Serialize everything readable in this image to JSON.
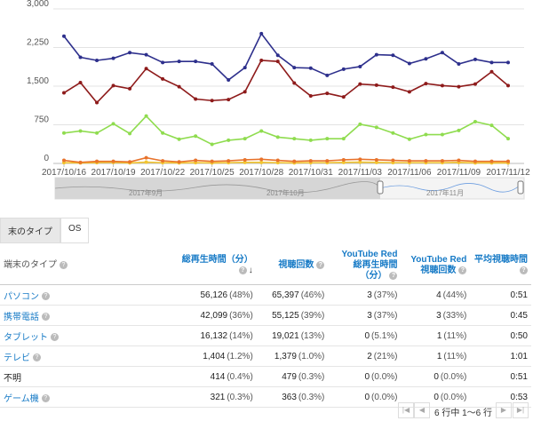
{
  "chart_data": {
    "type": "line",
    "x": [
      "2017/10/16",
      null,
      null,
      "2017/10/19",
      null,
      null,
      "2017/10/22",
      null,
      null,
      "2017/10/25",
      null,
      null,
      "2017/10/28",
      null,
      null,
      "2017/10/31",
      null,
      null,
      "2017/11/03",
      null,
      null,
      "2017/11/06",
      null,
      null,
      "2017/11/09",
      null,
      null,
      "2017/11/12"
    ],
    "series": [
      {
        "color": "#2d2f8c",
        "values": [
          2470,
          2060,
          2000,
          2040,
          2150,
          2110,
          1960,
          1980,
          1980,
          1930,
          1620,
          1860,
          2520,
          2100,
          1860,
          1850,
          1710,
          1830,
          1880,
          2110,
          2100,
          1940,
          2030,
          2150,
          1930,
          2020,
          1960,
          1960
        ]
      },
      {
        "color": "#8e1b1b",
        "values": [
          1370,
          1570,
          1180,
          1510,
          1450,
          1840,
          1640,
          1490,
          1250,
          1220,
          1240,
          1390,
          2000,
          1980,
          1560,
          1310,
          1360,
          1290,
          1540,
          1520,
          1480,
          1390,
          1550,
          1510,
          1490,
          1540,
          1780,
          1510
        ]
      },
      {
        "color": "#8fdc4f",
        "values": [
          590,
          630,
          590,
          770,
          580,
          920,
          590,
          470,
          530,
          370,
          450,
          480,
          630,
          510,
          480,
          450,
          480,
          480,
          760,
          700,
          590,
          470,
          560,
          560,
          640,
          810,
          740,
          480
        ]
      },
      {
        "color": "#e8732c",
        "values": [
          60,
          20,
          40,
          40,
          30,
          110,
          50,
          30,
          60,
          40,
          50,
          70,
          80,
          60,
          40,
          50,
          50,
          70,
          80,
          70,
          60,
          50,
          50,
          50,
          60,
          40,
          40,
          40
        ]
      },
      {
        "color": "#f2c530",
        "values": [
          15,
          10,
          15,
          20,
          10,
          25,
          15,
          10,
          15,
          10,
          15,
          20,
          20,
          15,
          10,
          15,
          15,
          20,
          25,
          20,
          15,
          15,
          15,
          15,
          20,
          10,
          10,
          10
        ]
      }
    ],
    "ylim": [
      0,
      3000
    ],
    "yticks": [
      0,
      750,
      {
        "value": 1500,
        "label": "1,500"
      },
      {
        "value": 2250,
        "label": "2,250"
      },
      {
        "value": 3000,
        "label": "3,000"
      }
    ],
    "grid": true
  },
  "navigator": {
    "labels": [
      "2017年9月",
      "2017年10月",
      "2017年11月"
    ]
  },
  "tabs": [
    "末のタイプ",
    "OS"
  ],
  "table": {
    "headers": [
      {
        "text": "端末のタイプ",
        "link": false
      },
      {
        "text": "総再生時間（分）",
        "link": true
      },
      {
        "text": "視聴回数",
        "link": true
      },
      {
        "text": "YouTube Red 総再生時間（分）",
        "link": true
      },
      {
        "text": "YouTube Red 視聴回数",
        "link": true
      },
      {
        "text": "平均視聴時間",
        "link": true
      }
    ],
    "rows": [
      {
        "label": "パソコン",
        "link": true,
        "cells": [
          [
            "56,126",
            "(48%)"
          ],
          [
            "65,397",
            "(46%)"
          ],
          [
            "3",
            "(37%)"
          ],
          [
            "4",
            "(44%)"
          ],
          [
            "0:51"
          ]
        ]
      },
      {
        "label": "携帯電話",
        "link": true,
        "cells": [
          [
            "42,099",
            "(36%)"
          ],
          [
            "55,125",
            "(39%)"
          ],
          [
            "3",
            "(37%)"
          ],
          [
            "3",
            "(33%)"
          ],
          [
            "0:45"
          ]
        ]
      },
      {
        "label": "タブレット",
        "link": true,
        "cells": [
          [
            "16,132",
            "(14%)"
          ],
          [
            "19,021",
            "(13%)"
          ],
          [
            "0",
            "(5.1%)"
          ],
          [
            "1",
            "(11%)"
          ],
          [
            "0:50"
          ]
        ]
      },
      {
        "label": "テレビ",
        "link": true,
        "cells": [
          [
            "1,404",
            "(1.2%)"
          ],
          [
            "1,379",
            "(1.0%)"
          ],
          [
            "2",
            "(21%)"
          ],
          [
            "1",
            "(11%)"
          ],
          [
            "1:01"
          ]
        ]
      },
      {
        "label": "不明",
        "link": false,
        "cells": [
          [
            "414",
            "(0.4%)"
          ],
          [
            "479",
            "(0.3%)"
          ],
          [
            "0",
            "(0.0%)"
          ],
          [
            "0",
            "(0.0%)"
          ],
          [
            "0:51"
          ]
        ]
      },
      {
        "label": "ゲーム機",
        "link": true,
        "cells": [
          [
            "321",
            "(0.3%)"
          ],
          [
            "363",
            "(0.3%)"
          ],
          [
            "0",
            "(0.0%)"
          ],
          [
            "0",
            "(0.0%)"
          ],
          [
            "0:53"
          ]
        ]
      }
    ]
  },
  "pagination": "6 行中 1～6 行"
}
